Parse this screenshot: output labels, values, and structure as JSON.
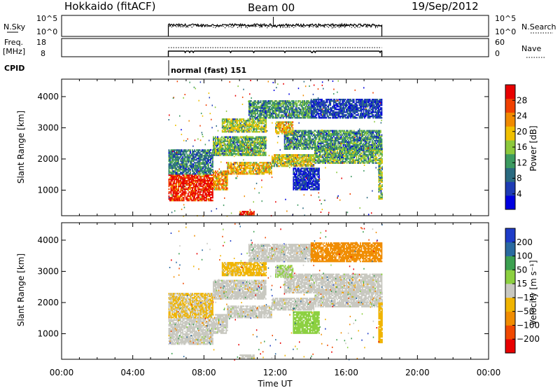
{
  "header": {
    "station": "Hokkaido (fitACF)",
    "beam": "Beam 00",
    "date": "19/Sep/2012"
  },
  "panels": {
    "nsky": {
      "label": "N.Sky",
      "ticks_left": [
        "10^5",
        "10^0"
      ],
      "ticks_right": [
        "10^5",
        "10^0"
      ],
      "right_label": "N.Search"
    },
    "freq": {
      "label_line1": "Freq.",
      "label_line2": "[MHz]",
      "ticks_left": [
        "18",
        "8"
      ],
      "ticks_right": [
        "60",
        "0"
      ],
      "right_label": "Nave"
    },
    "cpid": {
      "label": "CPID",
      "mode_text": "normal (fast) 151"
    }
  },
  "colors": {
    "power": [
      "#0000e0",
      "#1e3cb4",
      "#2a6a80",
      "#3c9a60",
      "#8cc83c",
      "#f0c000",
      "#f08a00",
      "#f04000",
      "#e80000"
    ],
    "velocity": [
      "#e80000",
      "#f04800",
      "#f08c00",
      "#f0b400",
      "#c8c8c0",
      "#8cd040",
      "#3ca050",
      "#2a6aa0",
      "#1e3cc8"
    ],
    "ground_scatter": "#c8c8c0"
  },
  "chart_data": [
    {
      "type": "heatmap",
      "title": "Power",
      "ylabel": "Slant Range [km]",
      "xlabel": "Time UT",
      "xlim": [
        "00:00",
        "24:00"
      ],
      "ylim": [
        180,
        4560
      ],
      "x_ticks": [
        "00:00",
        "04:00",
        "08:00",
        "12:00",
        "16:00",
        "20:00",
        "00:00"
      ],
      "y_ticks": [
        "1000",
        "2000",
        "3000",
        "4000"
      ],
      "colorbar": {
        "label": "Power [dB]",
        "ticks": [
          "28",
          "24",
          "20",
          "16",
          "12",
          "8",
          "4"
        ],
        "range": [
          0,
          30
        ]
      },
      "data_window_hours": [
        6,
        18
      ],
      "bands": [
        {
          "t0": 6.0,
          "t1": 8.5,
          "r0": 650,
          "r1": 1500,
          "level": 28
        },
        {
          "t0": 8.5,
          "t1": 9.3,
          "r0": 1000,
          "r1": 1600,
          "level": 22
        },
        {
          "t0": 9.3,
          "t1": 11.8,
          "r0": 1500,
          "r1": 1900,
          "level": 20
        },
        {
          "t0": 11.8,
          "t1": 14.2,
          "r0": 1750,
          "r1": 2150,
          "level": 18
        },
        {
          "t0": 14.2,
          "t1": 18.0,
          "r0": 1850,
          "r1": 2350,
          "level": 14
        },
        {
          "t0": 6.0,
          "t1": 8.5,
          "r0": 1500,
          "r1": 2300,
          "level": 10
        },
        {
          "t0": 8.5,
          "t1": 11.5,
          "r0": 2100,
          "r1": 2700,
          "level": 14
        },
        {
          "t0": 12.5,
          "t1": 18.0,
          "r0": 2300,
          "r1": 2900,
          "level": 12
        },
        {
          "t0": 9.0,
          "t1": 11.5,
          "r0": 2850,
          "r1": 3300,
          "level": 16
        },
        {
          "t0": 12.0,
          "t1": 13.0,
          "r0": 2800,
          "r1": 3200,
          "level": 20
        },
        {
          "t0": 10.5,
          "t1": 14.0,
          "r0": 3300,
          "r1": 3850,
          "level": 12
        },
        {
          "t0": 14.0,
          "t1": 18.0,
          "r0": 3300,
          "r1": 3900,
          "level": 6
        },
        {
          "t0": 13.0,
          "t1": 14.5,
          "r0": 1000,
          "r1": 1700,
          "level": 5
        },
        {
          "t0": 17.8,
          "t1": 18.0,
          "r0": 700,
          "r1": 2000,
          "level": 16
        },
        {
          "t0": 10.0,
          "t1": 10.8,
          "r0": 200,
          "r1": 300,
          "level": 28
        }
      ]
    },
    {
      "type": "heatmap",
      "title": "Velocity",
      "ylabel": "Slant Range [km]",
      "xlabel": "Time UT",
      "xlim": [
        "00:00",
        "24:00"
      ],
      "ylim": [
        180,
        4560
      ],
      "x_ticks": [
        "00:00",
        "04:00",
        "08:00",
        "12:00",
        "16:00",
        "20:00",
        "00:00"
      ],
      "y_ticks": [
        "1000",
        "2000",
        "3000",
        "4000"
      ],
      "colorbar": {
        "label": "Velocity [m s⁻¹]",
        "ticks": [
          "200",
          "100",
          "50",
          "15",
          "-15",
          "-50",
          "-100",
          "-200"
        ],
        "range": [
          -250,
          250
        ]
      },
      "data_window_hours": [
        6,
        18
      ],
      "bands": [
        {
          "t0": 6.0,
          "t1": 8.5,
          "r0": 650,
          "r1": 1500,
          "level": 0
        },
        {
          "t0": 8.5,
          "t1": 9.3,
          "r0": 1000,
          "r1": 1600,
          "level": 0
        },
        {
          "t0": 9.3,
          "t1": 11.8,
          "r0": 1500,
          "r1": 1900,
          "level": 0
        },
        {
          "t0": 11.8,
          "t1": 14.2,
          "r0": 1750,
          "r1": 2150,
          "level": 0
        },
        {
          "t0": 14.2,
          "t1": 18.0,
          "r0": 1850,
          "r1": 2350,
          "level": 0
        },
        {
          "t0": 6.0,
          "t1": 8.5,
          "r0": 1500,
          "r1": 2300,
          "level": -30
        },
        {
          "t0": 8.5,
          "t1": 11.5,
          "r0": 2100,
          "r1": 2700,
          "level": 0
        },
        {
          "t0": 12.5,
          "t1": 18.0,
          "r0": 2300,
          "r1": 2900,
          "level": 0
        },
        {
          "t0": 9.0,
          "t1": 11.5,
          "r0": 2850,
          "r1": 3300,
          "level": -40
        },
        {
          "t0": 12.0,
          "t1": 13.0,
          "r0": 2800,
          "r1": 3200,
          "level": 30
        },
        {
          "t0": 10.5,
          "t1": 14.0,
          "r0": 3300,
          "r1": 3850,
          "level": 0
        },
        {
          "t0": 14.0,
          "t1": 18.0,
          "r0": 3300,
          "r1": 3900,
          "level": -120
        },
        {
          "t0": 13.0,
          "t1": 14.5,
          "r0": 1000,
          "r1": 1700,
          "level": 60
        },
        {
          "t0": 17.8,
          "t1": 18.0,
          "r0": 700,
          "r1": 2000,
          "level": -60
        },
        {
          "t0": 10.0,
          "t1": 10.8,
          "r0": 200,
          "r1": 300,
          "level": 0
        }
      ]
    }
  ]
}
